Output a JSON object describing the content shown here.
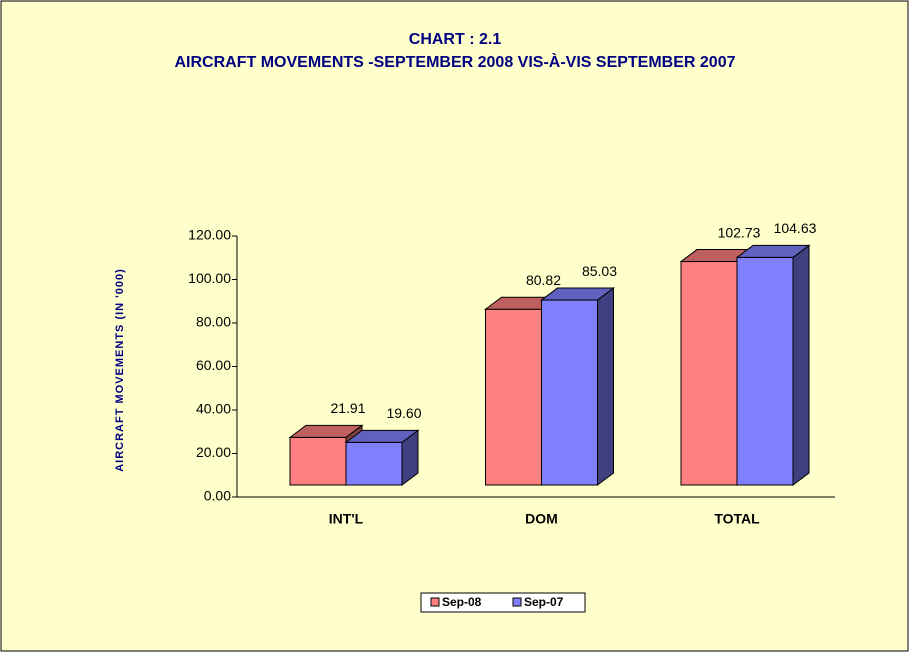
{
  "chart_data": {
    "type": "bar3d",
    "title": "CHART : 2.1",
    "subtitle": "AIRCRAFT MOVEMENTS -SEPTEMBER  2008 VIS-À-VIS SEPTEMBER 2007",
    "y_label": "AIRCRAFT MOVEMENTS (IN '000)",
    "categories": [
      "INT'L",
      "DOM",
      "TOTAL"
    ],
    "series": [
      {
        "name": "Sep-08",
        "color": "#ff8080",
        "values": [
          21.91,
          80.82,
          102.73
        ],
        "value_labels": [
          "21.91",
          "80.82",
          "102.73"
        ]
      },
      {
        "name": "Sep-07",
        "color": "#8080ff",
        "values": [
          19.6,
          85.03,
          104.63
        ],
        "value_labels": [
          "19.60",
          "85.03",
          "104.63"
        ]
      }
    ],
    "ylim": [
      0,
      120
    ],
    "yticks": [
      {
        "value": 0,
        "label": "0.00"
      },
      {
        "value": 20,
        "label": "20.00"
      },
      {
        "value": 40,
        "label": "40.00"
      },
      {
        "value": 60,
        "label": "60.00"
      },
      {
        "value": 80,
        "label": "80.00"
      },
      {
        "value": 100,
        "label": "100.00"
      },
      {
        "value": 120,
        "label": "120.00"
      }
    ],
    "legend": "bottom"
  }
}
